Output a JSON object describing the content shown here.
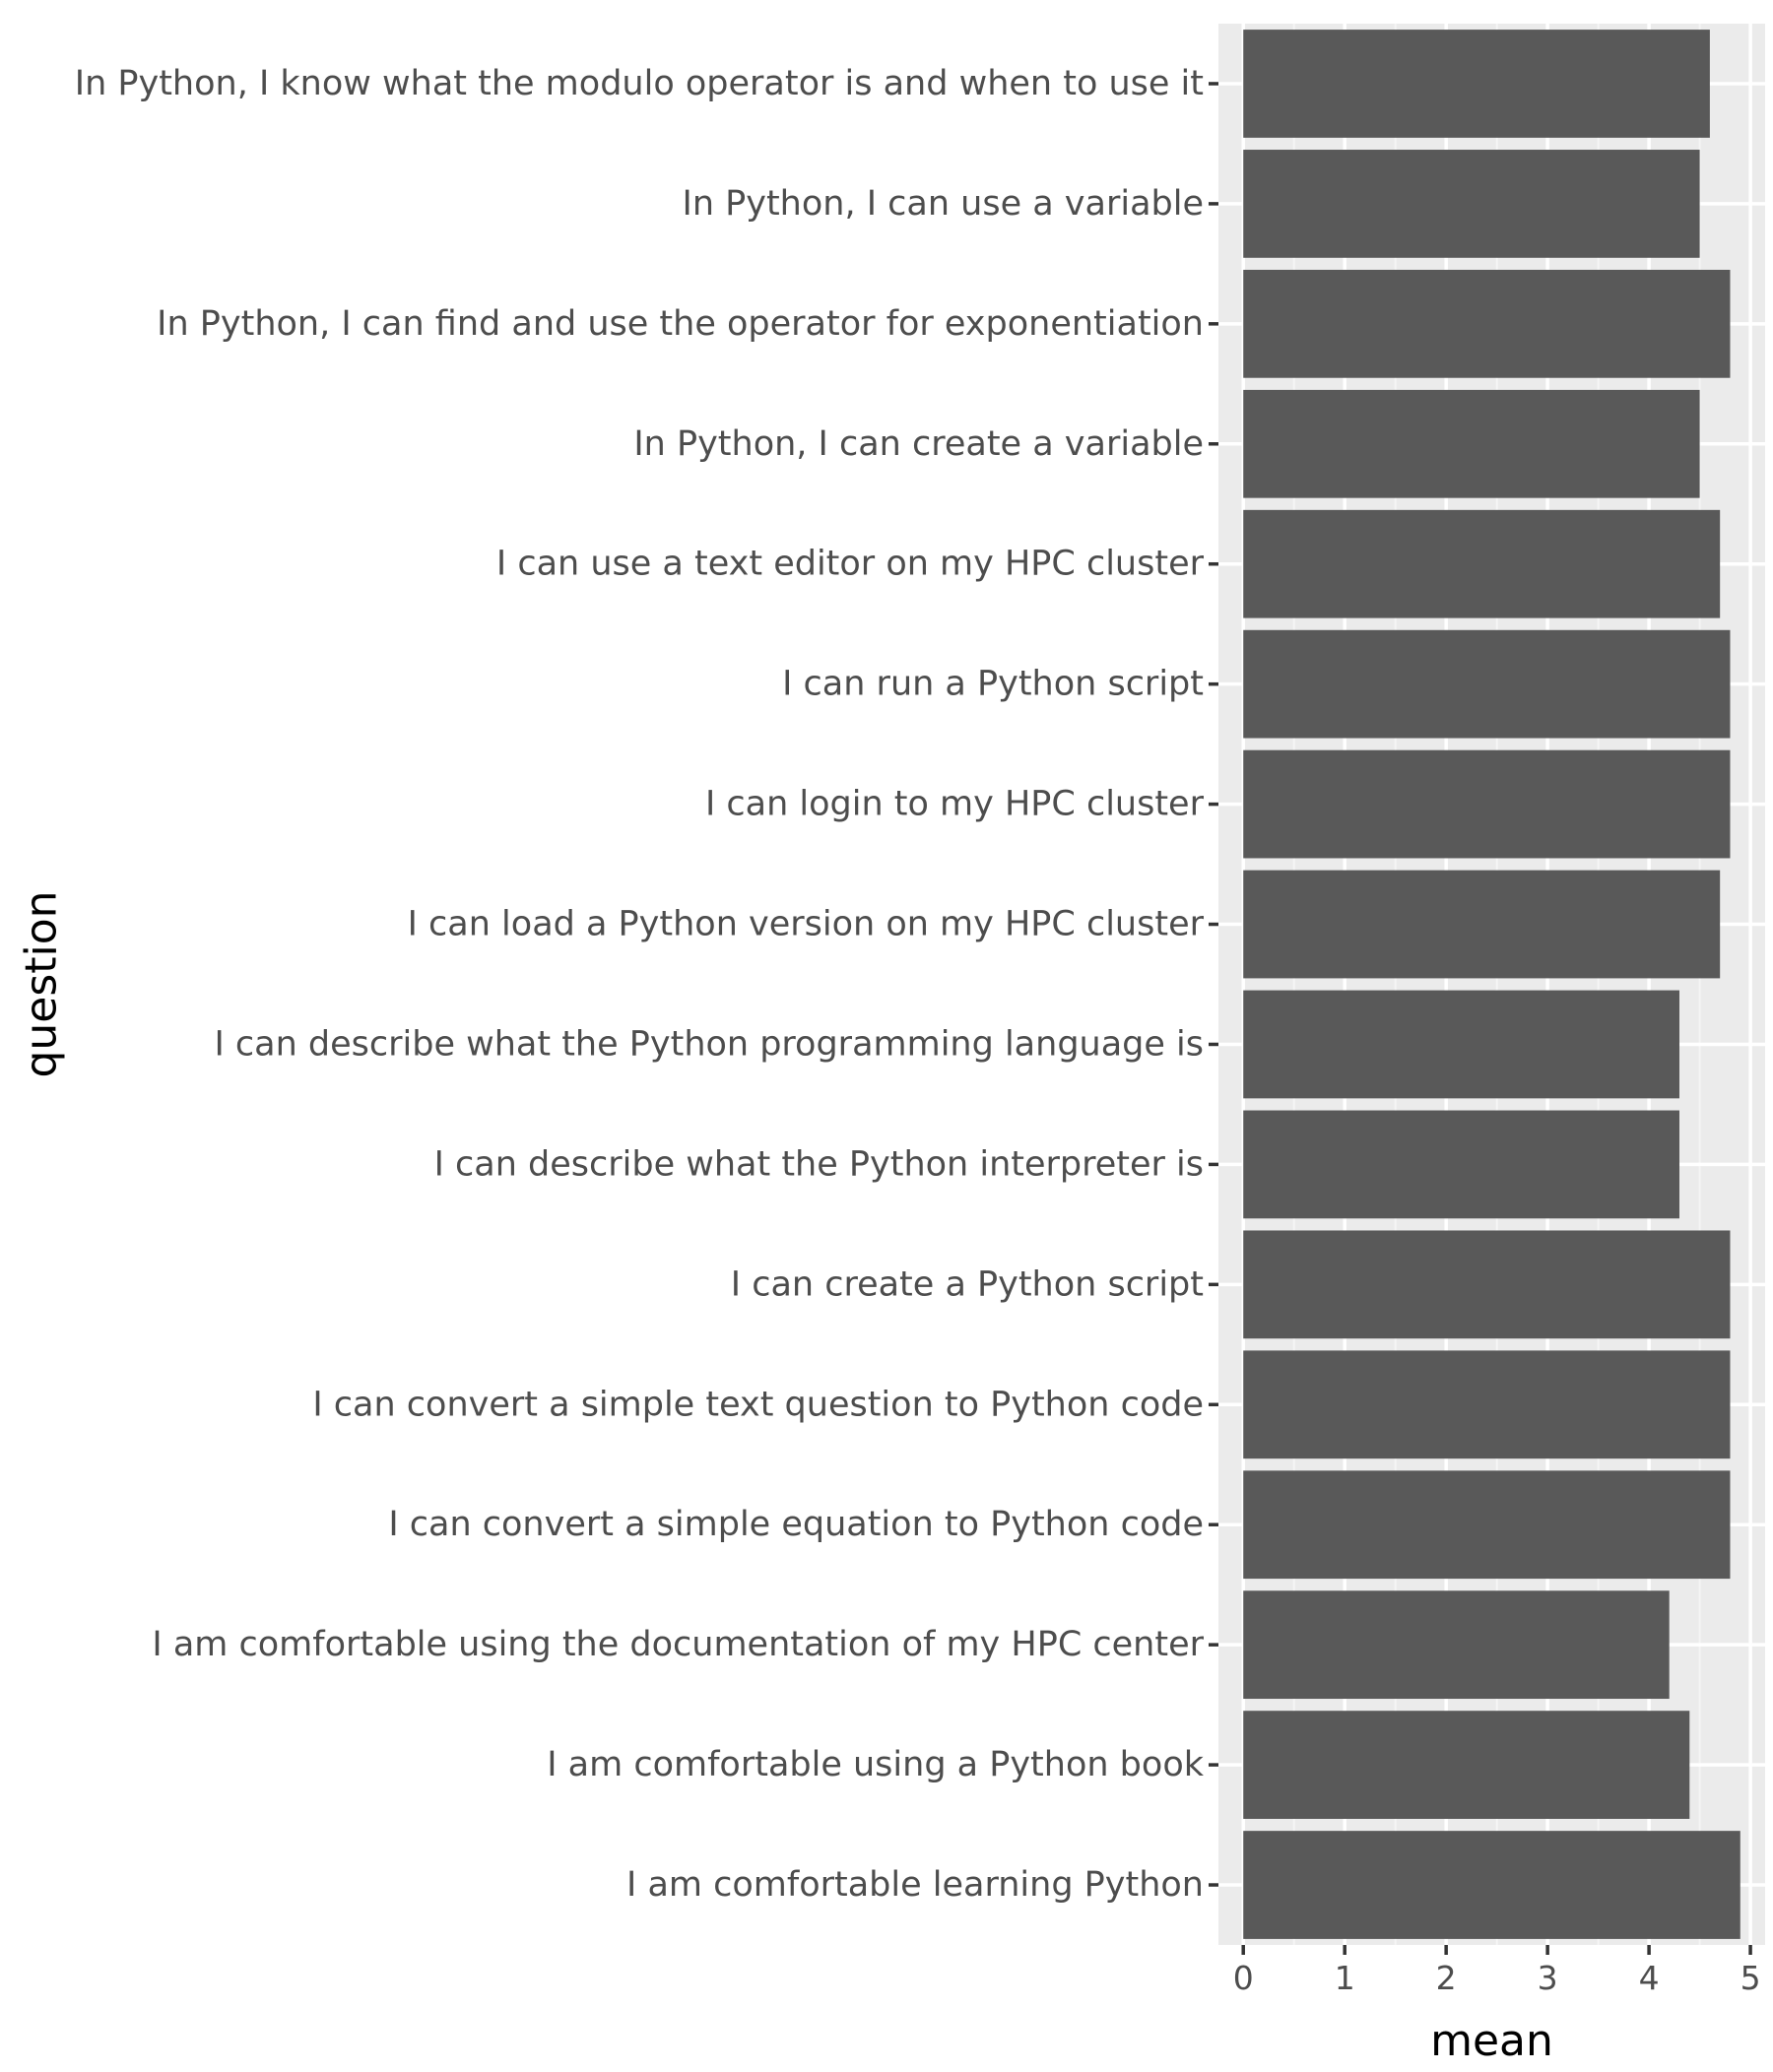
{
  "chart_data": {
    "type": "bar",
    "orientation": "horizontal",
    "categories": [
      "In Python, I know what the modulo operator is and when to use it",
      "In Python, I can use a variable",
      "In Python, I can find and use the operator for exponentiation",
      "In Python, I can create a variable",
      "I can use a text editor on my HPC cluster",
      "I can run a Python script",
      "I can login to my HPC cluster",
      "I can load a Python version on my HPC cluster",
      "I can describe what the Python programming language is",
      "I can describe what the Python interpreter is",
      "I can create a Python script",
      "I can convert a simple text question to Python code",
      "I can convert a simple equation to Python code",
      "I am comfortable using the documentation of my HPC center",
      "I am comfortable using a Python book",
      "I am comfortable learning Python"
    ],
    "values": [
      4.6,
      4.5,
      4.8,
      4.5,
      4.7,
      4.8,
      4.8,
      4.7,
      4.3,
      4.3,
      4.8,
      4.8,
      4.8,
      4.2,
      4.4,
      4.9
    ],
    "xlabel": "mean",
    "ylabel": "question",
    "xlim": [
      -0.245,
      5.145
    ],
    "xticks": [
      0,
      1,
      2,
      3,
      4,
      5
    ],
    "xtick_labels": [
      "0",
      "1",
      "2",
      "3",
      "4",
      "5"
    ],
    "grid": true,
    "colors": {
      "bar": "#595959",
      "panel": "#ebebeb",
      "grid_major": "#ffffff",
      "grid_minor": "#f5f5f5",
      "tick": "#333333",
      "tick_label": "#4d4d4d",
      "axis_title": "#000000"
    }
  }
}
